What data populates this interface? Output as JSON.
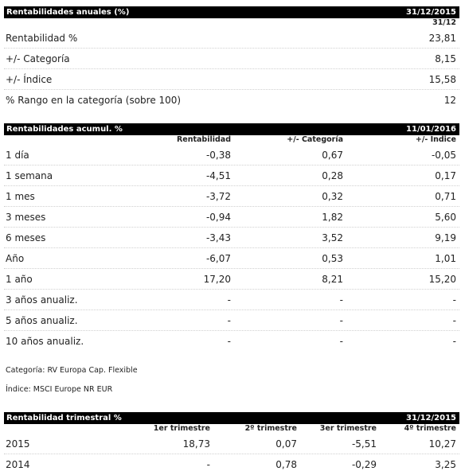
{
  "anuales": {
    "title": "Rentabilidades anuales (%)",
    "date": "31/12/2015",
    "col_date": "31/12",
    "rows": [
      {
        "label": "Rentabilidad %",
        "value": "23,81"
      },
      {
        "label": "+/- Categoría",
        "value": "8,15"
      },
      {
        "label": "+/- Índice",
        "value": "15,58"
      },
      {
        "label": "% Rango en la categoría (sobre 100)",
        "value": "12"
      }
    ]
  },
  "acumul": {
    "title": "Rentabilidades acumul. %",
    "date": "11/01/2016",
    "cols": [
      "Rentabilidad",
      "+/- Categoría",
      "+/- Índice"
    ],
    "rows": [
      {
        "label": "1 día",
        "v": [
          "-0,38",
          "0,67",
          "-0,05"
        ]
      },
      {
        "label": "1 semana",
        "v": [
          "-4,51",
          "0,28",
          "0,17"
        ]
      },
      {
        "label": "1 mes",
        "v": [
          "-3,72",
          "0,32",
          "0,71"
        ]
      },
      {
        "label": "3 meses",
        "v": [
          "-0,94",
          "1,82",
          "5,60"
        ]
      },
      {
        "label": "6 meses",
        "v": [
          "-3,43",
          "3,52",
          "9,19"
        ]
      },
      {
        "label": "Año",
        "v": [
          "-6,07",
          "0,53",
          "1,01"
        ]
      },
      {
        "label": "1 año",
        "v": [
          "17,20",
          "8,21",
          "15,20"
        ]
      },
      {
        "label": "3 años anualiz.",
        "v": [
          "-",
          "-",
          "-"
        ]
      },
      {
        "label": "5 años anualiz.",
        "v": [
          "-",
          "-",
          "-"
        ]
      },
      {
        "label": "10 años anualiz.",
        "v": [
          "-",
          "-",
          "-"
        ]
      }
    ]
  },
  "notes": {
    "categoria": "Categoría: RV Europa Cap. Flexible",
    "indice": "Índice: MSCI Europe NR EUR"
  },
  "trimestral": {
    "title": "Rentabilidad trimestral %",
    "date": "31/12/2015",
    "cols": [
      "1er trimestre",
      "2º trimestre",
      "3er trimestre",
      "4º trimestre"
    ],
    "rows": [
      {
        "label": "2015",
        "v": [
          "18,73",
          "0,07",
          "-5,51",
          "10,27"
        ]
      },
      {
        "label": "2014",
        "v": [
          "-",
          "0,78",
          "-0,29",
          "3,25"
        ]
      }
    ]
  }
}
